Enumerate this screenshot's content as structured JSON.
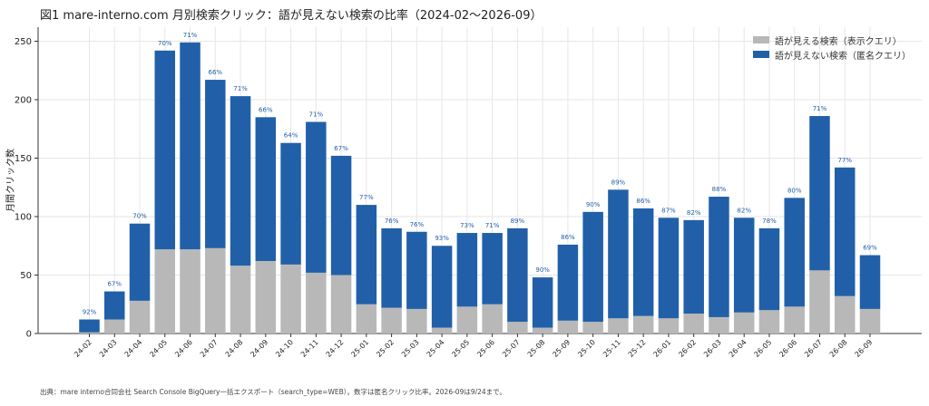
{
  "title": "図1  mare-interno.com 月別検索クリック：語が見えない検索の比率（2024-02〜2026-09）",
  "footnote": "出典：mare interno合同会社 Search Console BigQuery一括エクスポート（search_type=WEB）。数字は匿名クリック比率。2026-09は9/24まで。",
  "colors": {
    "visible": "#b8b8b8",
    "anonymous": "#2160a8",
    "label": "#2160a8",
    "grid": "#e6e6e6",
    "axis": "#333333"
  },
  "chart_data": {
    "type": "bar",
    "stacked": true,
    "ylabel": "月間クリック数",
    "xlabel": "",
    "ylim": [
      0,
      262
    ],
    "yticks": [
      0,
      50,
      100,
      150,
      200,
      250
    ],
    "grid": true,
    "legend_position": "top-right",
    "categories": [
      "24-02",
      "24-03",
      "24-04",
      "24-05",
      "24-06",
      "24-07",
      "24-08",
      "24-09",
      "24-10",
      "24-11",
      "24-12",
      "25-01",
      "25-02",
      "25-03",
      "25-04",
      "25-05",
      "25-06",
      "25-07",
      "25-08",
      "25-09",
      "25-10",
      "25-11",
      "25-12",
      "26-01",
      "26-02",
      "26-03",
      "26-04",
      "26-05",
      "26-06",
      "26-07",
      "26-08",
      "26-09"
    ],
    "series": [
      {
        "name": "語が見える検索（表示クエリ）",
        "values": [
          1,
          12,
          28,
          72,
          72,
          73,
          58,
          62,
          59,
          52,
          50,
          25,
          22,
          21,
          5,
          23,
          25,
          10,
          5,
          11,
          10,
          13,
          15,
          13,
          17,
          14,
          18,
          20,
          23,
          54,
          32,
          21
        ]
      },
      {
        "name": "語が見えない検索（匿名クエリ）",
        "values": [
          11,
          24,
          66,
          170,
          177,
          144,
          145,
          123,
          104,
          129,
          102,
          85,
          68,
          66,
          70,
          63,
          61,
          80,
          43,
          65,
          94,
          110,
          92,
          86,
          80,
          103,
          81,
          70,
          93,
          132,
          110,
          46
        ]
      }
    ],
    "data_labels": [
      "92%",
      "67%",
      "70%",
      "70%",
      "71%",
      "66%",
      "71%",
      "66%",
      "64%",
      "71%",
      "67%",
      "77%",
      "76%",
      "76%",
      "93%",
      "73%",
      "71%",
      "89%",
      "90%",
      "86%",
      "90%",
      "89%",
      "86%",
      "87%",
      "82%",
      "88%",
      "82%",
      "78%",
      "80%",
      "71%",
      "77%",
      "69%"
    ]
  }
}
